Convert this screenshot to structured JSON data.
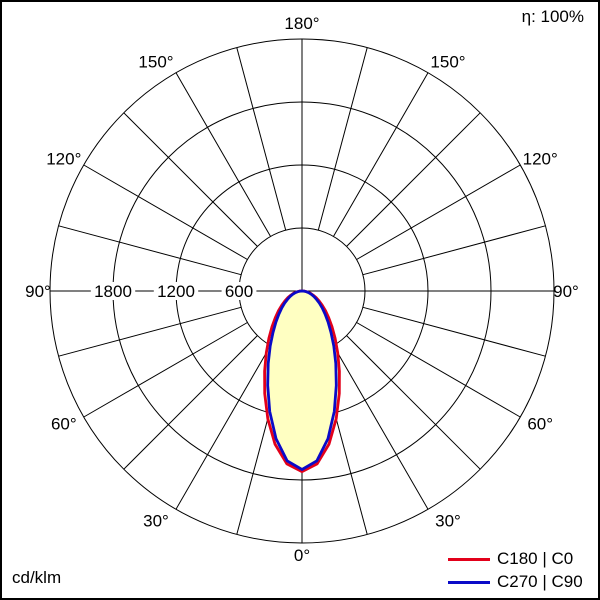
{
  "header": {
    "efficiency_label": "η: 100%"
  },
  "footer": {
    "unit_label": "cd/klm"
  },
  "legend": {
    "items": [
      {
        "label": "C180 | C0",
        "color": "#e2001a"
      },
      {
        "label": "C270 | C90",
        "color": "#0a0ac8"
      }
    ]
  },
  "chart_data": {
    "type": "line",
    "subtype": "polar-intensity-distribution",
    "units": "cd/klm",
    "orientation": "0 deg at bottom, 180 deg at top, symmetric left/right",
    "grid": {
      "angle_step_deg": 15,
      "angle_labels_deg": [
        0,
        30,
        60,
        90,
        120,
        150,
        180
      ],
      "radial_ticks": [
        600,
        1200,
        1800
      ],
      "radial_tick_labels": [
        "600",
        "1200",
        "1800"
      ],
      "radial_max": 2400,
      "grid_on": true,
      "color": "#000000"
    },
    "fill_color": "#ffffc2",
    "legend_position": "bottom-right",
    "series": [
      {
        "name": "C180 | C0",
        "color": "#e2001a",
        "gamma_deg": [
          0,
          5,
          10,
          15,
          20,
          25,
          30,
          35,
          40,
          45,
          50,
          55,
          60,
          65,
          70,
          75,
          80,
          85,
          90
        ],
        "values": [
          1720,
          1653,
          1481,
          1259,
          1038,
          842,
          680,
          549,
          444,
          359,
          292,
          235,
          188,
          148,
          113,
          82,
          53,
          27,
          0
        ]
      },
      {
        "name": "C270 | C90",
        "color": "#0a0ac8",
        "gamma_deg": [
          0,
          5,
          10,
          15,
          20,
          25,
          30,
          35,
          40,
          45,
          50,
          55,
          60,
          65,
          70,
          75,
          80,
          85,
          90
        ],
        "values": [
          1700,
          1623,
          1427,
          1187,
          956,
          762,
          605,
          482,
          387,
          311,
          251,
          202,
          161,
          126,
          96,
          70,
          45,
          23,
          0
        ]
      }
    ]
  }
}
